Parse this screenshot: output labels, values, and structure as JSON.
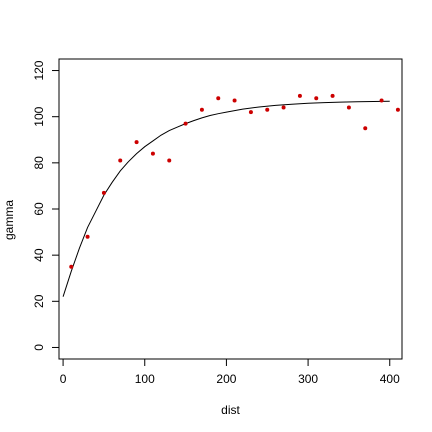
{
  "chart_data": {
    "type": "scatter",
    "title": "",
    "xlabel": "dist",
    "ylabel": "gamma",
    "xlim": [
      -5,
      415
    ],
    "ylim": [
      -5,
      125
    ],
    "xticks": [
      0,
      100,
      200,
      300,
      400
    ],
    "yticks": [
      0,
      20,
      40,
      60,
      80,
      100,
      120
    ],
    "grid": false,
    "series": [
      {
        "type": "scatter",
        "color": "#cc0000",
        "x": [
          10,
          30,
          50,
          70,
          90,
          110,
          130,
          150,
          170,
          190,
          210,
          230,
          250,
          270,
          290,
          310,
          330,
          350,
          370,
          390,
          410
        ],
        "y": [
          35,
          48,
          67,
          81,
          89,
          84,
          81,
          97,
          103,
          108,
          107,
          102,
          103,
          104,
          109,
          108,
          109,
          104,
          95,
          107,
          103
        ]
      },
      {
        "type": "line",
        "color": "#000000",
        "x": [
          0,
          10,
          20,
          30,
          40,
          50,
          60,
          70,
          80,
          90,
          100,
          110,
          120,
          130,
          140,
          150,
          160,
          170,
          180,
          190,
          200,
          220,
          240,
          260,
          280,
          300,
          320,
          340,
          360,
          380,
          400
        ],
        "y": [
          22,
          33,
          43,
          52,
          59,
          66,
          71.5,
          76.5,
          80.5,
          84,
          87,
          89.5,
          92,
          94,
          95.5,
          97,
          98.3,
          99.5,
          100.5,
          101.3,
          102,
          103.3,
          104.2,
          104.9,
          105.4,
          105.8,
          106.1,
          106.3,
          106.5,
          106.6,
          106.7
        ]
      }
    ]
  }
}
